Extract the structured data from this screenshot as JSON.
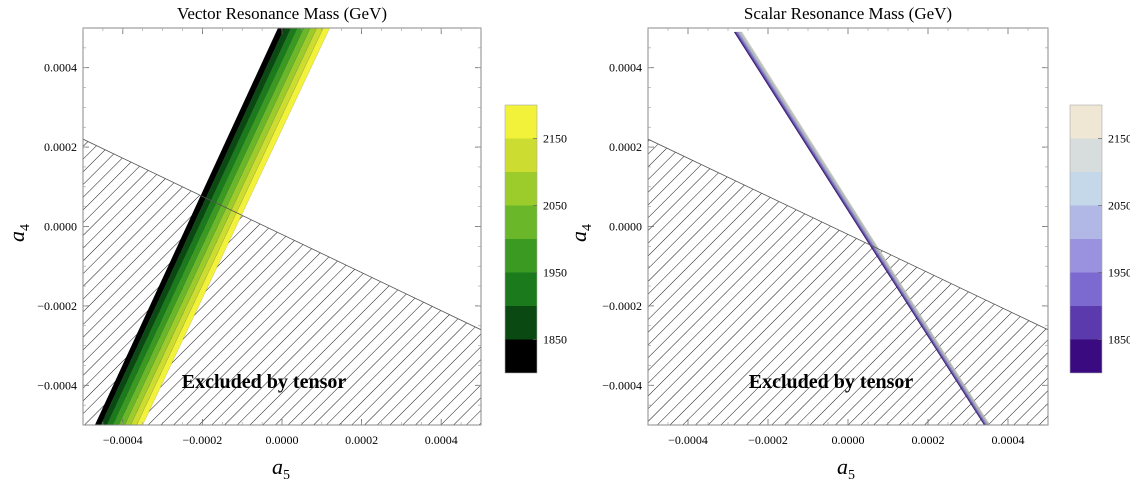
{
  "chart_data": [
    {
      "type": "contour",
      "title": "Vector Resonance Mass (GeV)",
      "xlabel": "a",
      "xlabel_sub": "5",
      "ylabel": "a",
      "ylabel_sub": "4",
      "xlim": [
        -0.0005,
        0.0005
      ],
      "ylim": [
        -0.0005,
        0.0005
      ],
      "xticks": [
        -0.0004,
        -0.0002,
        0.0,
        0.0002,
        0.0004
      ],
      "xtick_labels": [
        "−0.0004",
        "−0.0002",
        "0.0000",
        "0.0002",
        "0.0004"
      ],
      "yticks": [
        0.0004,
        0.0002,
        0.0,
        -0.0002,
        -0.0004
      ],
      "ytick_labels": [
        "0.0004",
        "0.0002",
        "0.0000",
        "−0.0002",
        "−0.0004"
      ],
      "excluded_region": {
        "label": "Excluded by tensor",
        "boundary": [
          [
            -0.0005,
            0.00022
          ],
          [
            0.0005,
            -0.00026
          ]
        ]
      },
      "contour_band": {
        "bottom_x": [
          -0.00047,
          -0.00035
        ],
        "top_x": [
          -1e-05,
          0.00012
        ],
        "y_range": [
          -0.0005,
          0.0005
        ]
      },
      "colorbar": {
        "levels": [
          1800,
          1850,
          1900,
          1950,
          2000,
          2050,
          2100,
          2150,
          2200
        ],
        "tick_values": [
          1850,
          1950,
          2050,
          2150
        ],
        "tick_labels": [
          "1850",
          "1950",
          "2050",
          "2150"
        ],
        "colors": [
          "#000000",
          "#0a4a12",
          "#1a7a1c",
          "#3a9a22",
          "#6ab82a",
          "#9ccc2c",
          "#ccdc30",
          "#f2f23a"
        ]
      }
    },
    {
      "type": "contour",
      "title": "Scalar Resonance Mass (GeV)",
      "xlabel": "a",
      "xlabel_sub": "5",
      "ylabel": "a",
      "ylabel_sub": "4",
      "xlim": [
        -0.0005,
        0.0005
      ],
      "ylim": [
        -0.0005,
        0.0005
      ],
      "xticks": [
        -0.0004,
        -0.0002,
        0.0,
        0.0002,
        0.0004
      ],
      "xtick_labels": [
        "−0.0004",
        "−0.0002",
        "0.0000",
        "0.0002",
        "0.0004"
      ],
      "yticks": [
        0.0004,
        0.0002,
        0.0,
        -0.0002,
        -0.0004
      ],
      "ytick_labels": [
        "0.0004",
        "0.0002",
        "0.0000",
        "−0.0002",
        "−0.0004"
      ],
      "excluded_region": {
        "label": "Excluded by tensor",
        "boundary": [
          [
            -0.0005,
            0.00022
          ],
          [
            0.0005,
            -0.00026
          ]
        ]
      },
      "contour_band": {
        "top_x": [
          -0.000285,
          -0.000265
        ],
        "bottom_x": [
          0.00034,
          0.000355
        ],
        "y_range": [
          -0.0005,
          0.00049
        ]
      },
      "colorbar": {
        "levels": [
          1800,
          1850,
          1900,
          1950,
          2000,
          2050,
          2100,
          2150,
          2200
        ],
        "tick_values": [
          1850,
          1950,
          2050,
          2150
        ],
        "tick_labels": [
          "1850",
          "1950",
          "2050",
          "2150"
        ],
        "colors": [
          "#3a0a80",
          "#5a3aac",
          "#7c6ad0",
          "#9a92de",
          "#b2b8e6",
          "#c4d8ea",
          "#d6dddc",
          "#efe6d4"
        ]
      }
    }
  ]
}
